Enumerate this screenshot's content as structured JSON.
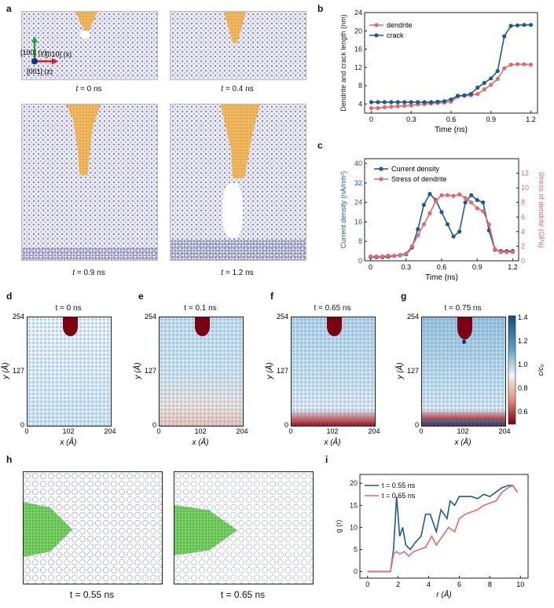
{
  "panel_letters": {
    "a": "a",
    "b": "b",
    "c": "c",
    "d": "d",
    "e": "e",
    "f": "f",
    "g": "g",
    "h": "h",
    "i": "i"
  },
  "panel_a": {
    "axes": {
      "y": "[100] (y)",
      "x": "[010] (x)",
      "z": "[001] (z)"
    },
    "captions": [
      "= 0 ns",
      "= 0.4 ns",
      "= 0.9 ns",
      "= 1.2 ns"
    ],
    "t_symbol": "t"
  },
  "heatmaps": [
    {
      "time": "t = 0 ns",
      "state": "uniform"
    },
    {
      "time": "t = 0.1 ns",
      "state": "depleting"
    },
    {
      "time": "t = 0.65 ns",
      "state": "depleted"
    },
    {
      "time": "t = 0.75 ns",
      "state": "crack"
    }
  ],
  "heatmap_axes": {
    "xlabel": "x (Å)",
    "ylabel": "y (Å)",
    "xticks": [
      "0",
      "102",
      "204"
    ],
    "yticks": [
      "0",
      "127",
      "254"
    ]
  },
  "colorbar": {
    "label": "c/c₀",
    "ticks": [
      "1.4",
      "1.2",
      "1.0",
      "0.8",
      "0.6"
    ],
    "colors": {
      "high": "#0d4f78",
      "mid": "#f4f4f4",
      "low": "#7a0012"
    }
  },
  "panel_h": {
    "captions": [
      "t = 0.55 ns",
      "t = 0.65 ns"
    ]
  },
  "colors": {
    "red": "#e06a6e",
    "blue": "#1f5a8f",
    "dendrite": "#f2c070"
  },
  "chart_data": [
    {
      "id": "b",
      "type": "line",
      "xlabel": "Time (ns)",
      "ylabel": "Dendrite and crack length (nm)",
      "xlim": [
        -0.05,
        1.25
      ],
      "ylim": [
        2,
        24
      ],
      "xticks": [
        0,
        0.3,
        0.6,
        0.9,
        1.2
      ],
      "yticks": [
        4,
        8,
        12,
        16,
        20,
        24
      ],
      "legend": "top-left",
      "series": [
        {
          "name": "dendrite",
          "color": "#e06a6e",
          "x": [
            0,
            0.05,
            0.1,
            0.15,
            0.2,
            0.25,
            0.3,
            0.35,
            0.4,
            0.45,
            0.5,
            0.55,
            0.6,
            0.65,
            0.7,
            0.75,
            0.8,
            0.85,
            0.9,
            0.95,
            1.0,
            1.05,
            1.1,
            1.15,
            1.2
          ],
          "y": [
            3.1,
            3.1,
            3.3,
            3.4,
            3.5,
            3.6,
            3.7,
            3.9,
            4.0,
            4.1,
            4.2,
            4.3,
            4.5,
            5.6,
            5.8,
            5.9,
            6.2,
            7.2,
            8.2,
            9.5,
            11.8,
            12.6,
            12.7,
            12.7,
            12.6
          ]
        },
        {
          "name": "crack",
          "color": "#1f5a8f",
          "x": [
            0,
            0.05,
            0.1,
            0.15,
            0.2,
            0.25,
            0.3,
            0.35,
            0.4,
            0.45,
            0.5,
            0.55,
            0.6,
            0.65,
            0.7,
            0.75,
            0.8,
            0.85,
            0.9,
            0.95,
            1.0,
            1.05,
            1.1,
            1.15,
            1.2
          ],
          "y": [
            4.4,
            4.4,
            4.4,
            4.4,
            4.4,
            4.4,
            4.4,
            4.4,
            4.4,
            4.4,
            4.5,
            4.6,
            5.0,
            5.8,
            5.9,
            6.2,
            7.6,
            8.6,
            9.6,
            11.2,
            18.8,
            21.1,
            21.2,
            21.3,
            21.3
          ]
        }
      ]
    },
    {
      "id": "c",
      "type": "line",
      "xlabel": "Time (ns)",
      "ylabel": "Current density (nA/nm²)",
      "y2label": "Stress of dendrite (GPa)",
      "xlim": [
        -0.05,
        1.25
      ],
      "ylim": [
        0,
        42
      ],
      "y2lim": [
        0,
        14
      ],
      "xticks": [
        0,
        0.3,
        0.6,
        0.9,
        1.2
      ],
      "yticks": [
        0,
        8,
        16,
        24,
        32,
        40
      ],
      "y2ticks": [
        0,
        2,
        4,
        6,
        8,
        10,
        12
      ],
      "legend": "top",
      "series": [
        {
          "name": "Current density",
          "axis": "left",
          "color": "#1f5a8f",
          "x": [
            0,
            0.05,
            0.1,
            0.15,
            0.2,
            0.25,
            0.3,
            0.35,
            0.4,
            0.45,
            0.5,
            0.55,
            0.6,
            0.65,
            0.7,
            0.75,
            0.8,
            0.85,
            0.9,
            0.95,
            1.0,
            1.05,
            1.1,
            1.15,
            1.2
          ],
          "y": [
            1.5,
            1.5,
            1.5,
            1.7,
            2,
            2.3,
            2.7,
            5.5,
            13,
            23,
            27.5,
            25,
            20,
            15,
            10,
            12,
            24,
            27,
            25,
            24,
            12.5,
            4.5,
            4,
            4,
            4
          ]
        },
        {
          "name": "Stress of dendrite",
          "axis": "right",
          "color": "#e06a6e",
          "x": [
            0,
            0.05,
            0.1,
            0.15,
            0.2,
            0.25,
            0.3,
            0.35,
            0.4,
            0.45,
            0.5,
            0.55,
            0.6,
            0.65,
            0.7,
            0.75,
            0.8,
            0.85,
            0.9,
            0.95,
            1.0,
            1.05,
            1.1,
            1.15,
            1.2
          ],
          "y": [
            0.6,
            0.6,
            0.6,
            0.7,
            0.7,
            0.8,
            1.0,
            2.0,
            3.5,
            5.0,
            6.5,
            8.2,
            9.0,
            9.0,
            8.9,
            9.1,
            8.6,
            8.0,
            7.2,
            6.8,
            5.0,
            1.6,
            1.2,
            1.2,
            1.2
          ]
        }
      ]
    },
    {
      "id": "i",
      "type": "line",
      "xlabel": "r (Å)",
      "ylabel": "g (r)",
      "xlim": [
        -0.5,
        10.5
      ],
      "ylim": [
        -1.5,
        22
      ],
      "xticks": [
        0,
        2,
        4,
        6,
        8,
        10
      ],
      "yticks": [
        0,
        5,
        10,
        15,
        20
      ],
      "legend": "top-left",
      "series": [
        {
          "name": "t = 0.55 ns",
          "color": "#1f5a8f",
          "x": [
            0,
            1.5,
            1.7,
            1.9,
            2.1,
            2.3,
            2.5,
            2.8,
            3.1,
            3.5,
            3.8,
            4.1,
            4.5,
            4.8,
            5.2,
            5.4,
            5.7,
            6.0,
            6.3,
            6.8,
            7.2,
            7.6,
            8.0,
            8.4,
            8.8,
            9.2,
            9.5,
            9.8
          ],
          "y": [
            0,
            0,
            5,
            17,
            8,
            10,
            6,
            5,
            6.5,
            8,
            13,
            13,
            9,
            14,
            12,
            16,
            15,
            17,
            17,
            17,
            16.5,
            17.5,
            17,
            18,
            19,
            19.5,
            19.5,
            18
          ]
        },
        {
          "name": "t = 0.65 ns",
          "color": "#e06a6e",
          "x": [
            0,
            1.5,
            1.7,
            1.9,
            2.1,
            2.4,
            2.7,
            3.0,
            3.4,
            3.8,
            4.2,
            4.5,
            4.9,
            5.3,
            5.7,
            6.0,
            6.4,
            6.8,
            7.2,
            7.6,
            8.0,
            8.4,
            8.8,
            9.2,
            9.5,
            9.8
          ],
          "y": [
            0,
            0,
            4,
            4.5,
            4,
            4.5,
            3.5,
            4.5,
            5,
            5.5,
            8,
            6,
            8,
            10,
            9,
            12,
            13,
            13.5,
            14,
            15,
            15.5,
            16,
            18,
            19,
            19.5,
            18
          ]
        }
      ]
    }
  ]
}
